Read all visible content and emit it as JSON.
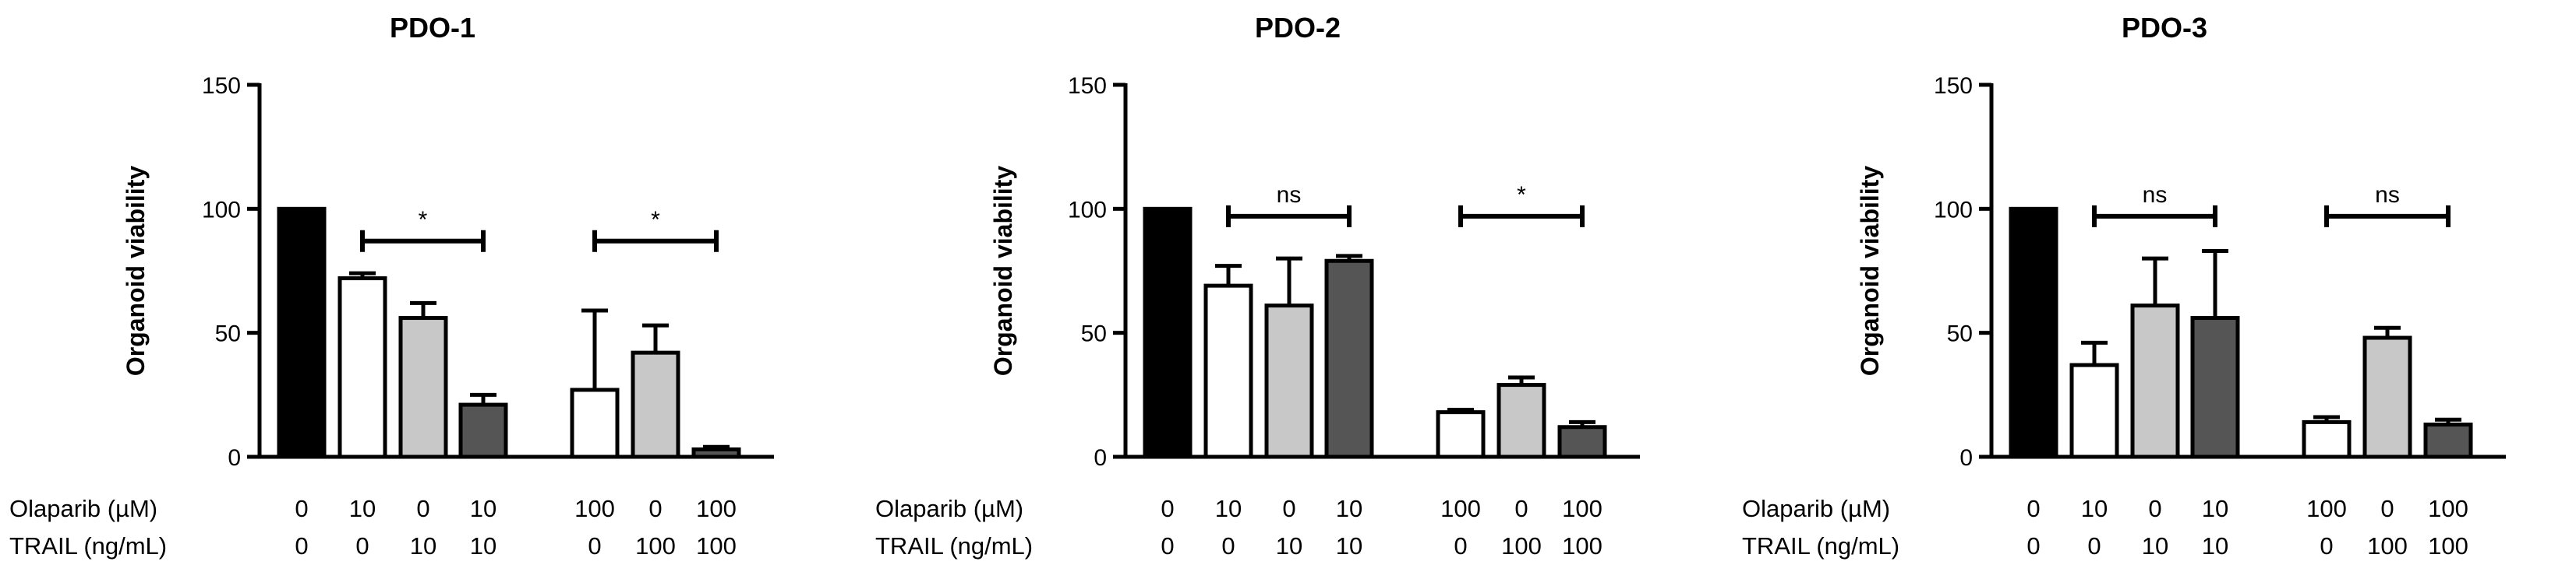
{
  "chart_data": [
    {
      "type": "bar",
      "title": "PDO-1",
      "ylabel": "Organoid viability",
      "ylim": [
        0,
        150
      ],
      "yticks": [
        "0",
        "50",
        "100",
        "150"
      ],
      "bars": [
        {
          "olaparib": "0",
          "trail": "0",
          "value": 100,
          "error": 0,
          "fill": "#000000"
        },
        {
          "olaparib": "10",
          "trail": "0",
          "value": 72,
          "error": 2,
          "fill": "#ffffff"
        },
        {
          "olaparib": "0",
          "trail": "10",
          "value": 56,
          "error": 6,
          "fill": "#c8c8c8"
        },
        {
          "olaparib": "10",
          "trail": "10",
          "value": 21,
          "error": 4,
          "fill": "#555555"
        },
        {
          "olaparib": "100",
          "trail": "0",
          "value": 27,
          "error": 32,
          "fill": "#ffffff"
        },
        {
          "olaparib": "0",
          "trail": "100",
          "value": 42,
          "error": 11,
          "fill": "#c8c8c8"
        },
        {
          "olaparib": "100",
          "trail": "100",
          "value": 3,
          "error": 1,
          "fill": "#555555"
        }
      ],
      "significance": [
        {
          "from": 1,
          "to": 3,
          "y": 87,
          "label": "*"
        },
        {
          "from": 4,
          "to": 6,
          "y": 87,
          "label": "*"
        }
      ]
    },
    {
      "type": "bar",
      "title": "PDO-2",
      "ylabel": "Organoid viability",
      "ylim": [
        0,
        150
      ],
      "yticks": [
        "0",
        "50",
        "100",
        "150"
      ],
      "bars": [
        {
          "olaparib": "0",
          "trail": "0",
          "value": 100,
          "error": 0,
          "fill": "#000000"
        },
        {
          "olaparib": "10",
          "trail": "0",
          "value": 69,
          "error": 8,
          "fill": "#ffffff"
        },
        {
          "olaparib": "0",
          "trail": "10",
          "value": 61,
          "error": 19,
          "fill": "#c8c8c8"
        },
        {
          "olaparib": "10",
          "trail": "10",
          "value": 79,
          "error": 2,
          "fill": "#555555"
        },
        {
          "olaparib": "100",
          "trail": "0",
          "value": 18,
          "error": 1,
          "fill": "#ffffff"
        },
        {
          "olaparib": "0",
          "trail": "100",
          "value": 29,
          "error": 3,
          "fill": "#c8c8c8"
        },
        {
          "olaparib": "100",
          "trail": "100",
          "value": 12,
          "error": 2,
          "fill": "#555555"
        }
      ],
      "significance": [
        {
          "from": 1,
          "to": 3,
          "y": 97,
          "label": "ns"
        },
        {
          "from": 4,
          "to": 6,
          "y": 97,
          "label": "*"
        }
      ]
    },
    {
      "type": "bar",
      "title": "PDO-3",
      "ylabel": "Organoid viability",
      "ylim": [
        0,
        150
      ],
      "yticks": [
        "0",
        "50",
        "100",
        "150"
      ],
      "bars": [
        {
          "olaparib": "0",
          "trail": "0",
          "value": 100,
          "error": 0,
          "fill": "#000000"
        },
        {
          "olaparib": "10",
          "trail": "0",
          "value": 37,
          "error": 9,
          "fill": "#ffffff"
        },
        {
          "olaparib": "0",
          "trail": "10",
          "value": 61,
          "error": 19,
          "fill": "#c8c8c8"
        },
        {
          "olaparib": "10",
          "trail": "10",
          "value": 56,
          "error": 27,
          "fill": "#555555"
        },
        {
          "olaparib": "100",
          "trail": "0",
          "value": 14,
          "error": 2,
          "fill": "#ffffff"
        },
        {
          "olaparib": "0",
          "trail": "100",
          "value": 48,
          "error": 4,
          "fill": "#c8c8c8"
        },
        {
          "olaparib": "100",
          "trail": "100",
          "value": 13,
          "error": 2,
          "fill": "#555555"
        }
      ],
      "significance": [
        {
          "from": 1,
          "to": 3,
          "y": 97,
          "label": "ns"
        },
        {
          "from": 4,
          "to": 6,
          "y": 97,
          "label": "ns"
        }
      ]
    }
  ],
  "row_labels": {
    "olaparib": "Olaparib (µM)",
    "trail": "TRAIL (ng/mL)"
  }
}
